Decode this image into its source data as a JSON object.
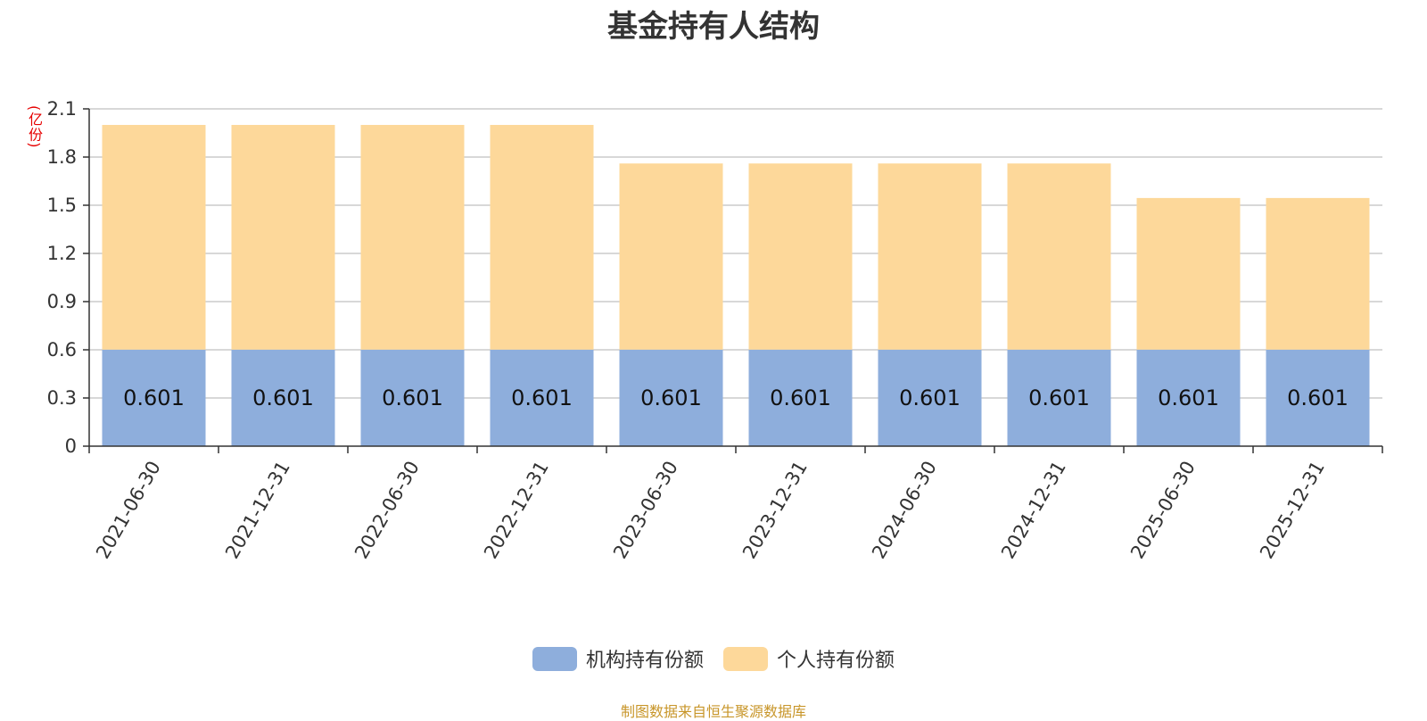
{
  "chart_data": {
    "type": "bar",
    "stacked": true,
    "title": "基金持有人结构",
    "unit_label": "(亿份)",
    "categories": [
      "2021-06-30",
      "2021-12-31",
      "2022-06-30",
      "2022-12-31",
      "2023-06-30",
      "2023-12-31",
      "2024-06-30",
      "2024-12-31",
      "2025-06-30",
      "2025-12-31"
    ],
    "series": [
      {
        "name": "机构持有份额",
        "color": "#8eaedc",
        "values": [
          0.601,
          0.601,
          0.601,
          0.601,
          0.601,
          0.601,
          0.601,
          0.601,
          0.601,
          0.601
        ],
        "labels": [
          "0.601",
          "0.601",
          "0.601",
          "0.601",
          "0.601",
          "0.601",
          "0.601",
          "0.601",
          "0.601",
          "0.601"
        ]
      },
      {
        "name": "个人持有份额",
        "color": "#fdd89a",
        "values": [
          1.399,
          1.399,
          1.399,
          1.399,
          1.159,
          1.159,
          1.159,
          1.159,
          0.944,
          0.944
        ]
      }
    ],
    "ylim": [
      0,
      2.1
    ],
    "yticks": [
      "0",
      "0.3",
      "0.6",
      "0.9",
      "1.2",
      "1.5",
      "1.8",
      "2.1"
    ],
    "grid": true,
    "legend_position": "bottom"
  },
  "source_text": "制图数据来自恒生聚源数据库"
}
